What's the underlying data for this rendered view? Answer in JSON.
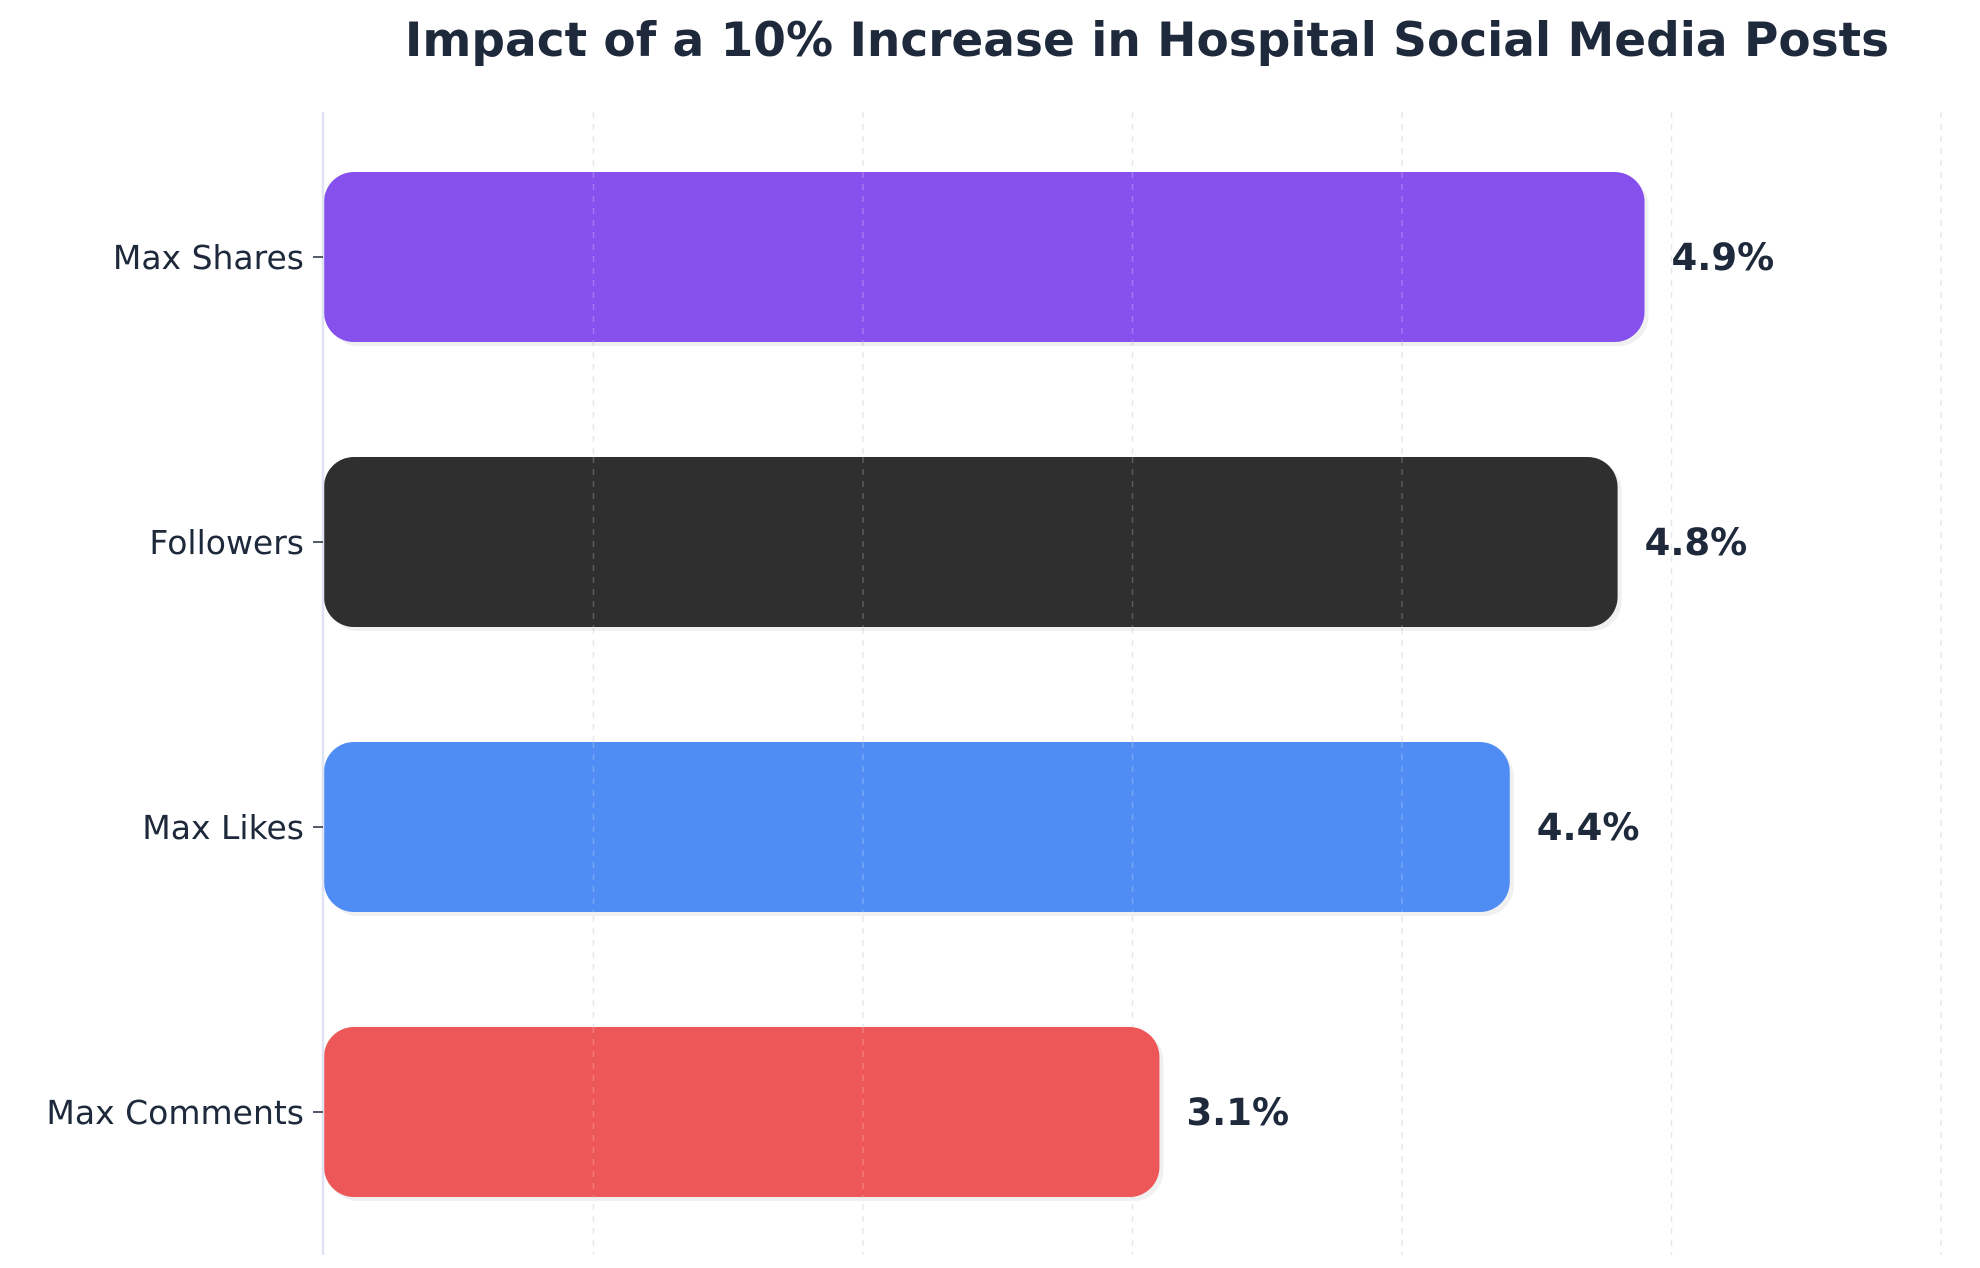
{
  "chart_data": {
    "type": "bar",
    "orientation": "horizontal",
    "title": "Impact of a 10% Increase in Hospital Social Media Posts",
    "xlabel": "",
    "ylabel": "",
    "xlim": [
      0,
      6.0
    ],
    "grid": "vertical dashed",
    "legend": "none",
    "value_suffix": "%",
    "bars": [
      {
        "category": "Max Shares",
        "value": 4.9,
        "label": "4.9%",
        "color": "#8650ed"
      },
      {
        "category": "Followers",
        "value": 4.8,
        "label": "4.8%",
        "color": "#2f2f2f"
      },
      {
        "category": "Max Likes",
        "value": 4.4,
        "label": "4.4%",
        "color": "#4f8df4"
      },
      {
        "category": "Max Comments",
        "value": 3.1,
        "label": "3.1%",
        "color": "#ee5757"
      }
    ]
  }
}
